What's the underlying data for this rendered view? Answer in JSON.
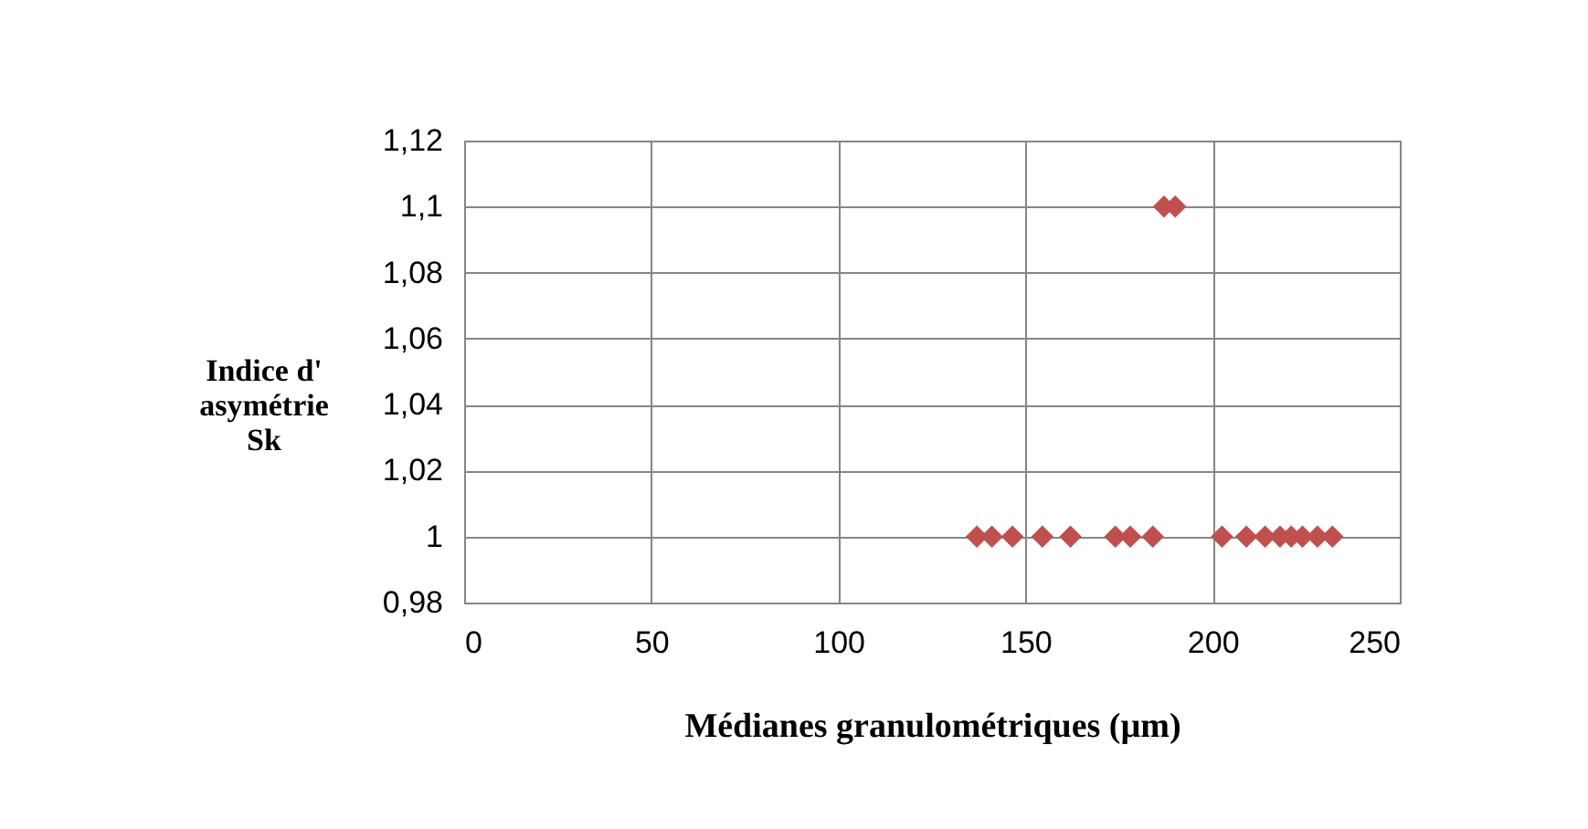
{
  "chart_data": {
    "type": "scatter",
    "xlabel": "Médianes granulométriques (µm)",
    "ylabel": "Indice d'\nasymétrie\nSk",
    "series": [
      {
        "color": "#c0504d",
        "x": [
          137,
          141,
          146.5,
          154.5,
          162,
          174,
          178,
          184,
          202.5,
          209,
          214,
          218,
          221,
          224,
          228,
          232,
          187,
          190
        ],
        "values": [
          1,
          1,
          1,
          1,
          1,
          1,
          1,
          1,
          1,
          1,
          1,
          1,
          1,
          1,
          1,
          1,
          1.1,
          1.1
        ]
      }
    ],
    "xlim": [
      0,
      250
    ],
    "xticks": [
      0,
      50,
      100,
      150,
      200,
      250
    ],
    "ylim": [
      0.98,
      1.12
    ],
    "yticks": [
      {
        "value": 0.98,
        "label": "0,98"
      },
      {
        "value": 1,
        "label": "1"
      },
      {
        "value": 1.02,
        "label": "1,02"
      },
      {
        "value": 1.04,
        "label": "1,04"
      },
      {
        "value": 1.06,
        "label": "1,06"
      },
      {
        "value": 1.08,
        "label": "1,08"
      },
      {
        "value": 1.1,
        "label": "1,1"
      },
      {
        "value": 1.12,
        "label": "1,12"
      }
    ],
    "grid": true,
    "marker": "diamond"
  }
}
